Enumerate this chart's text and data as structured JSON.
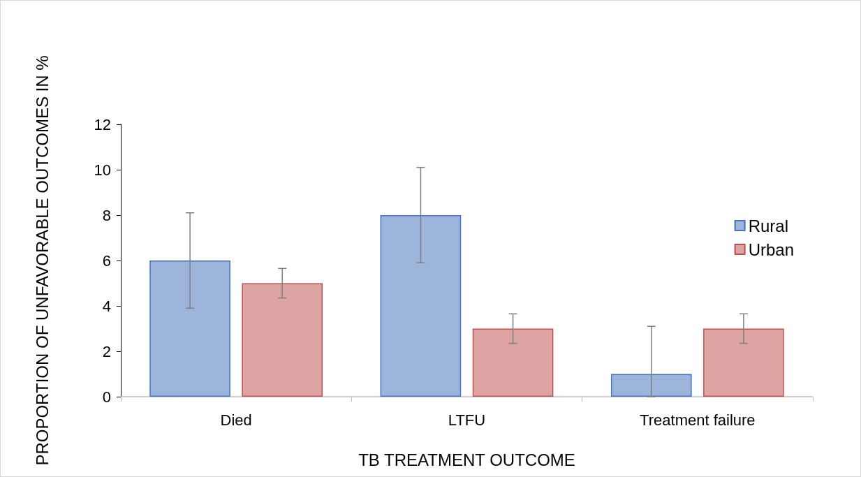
{
  "chart_data": {
    "type": "bar",
    "xlabel": "TB TREATMENT OUTCOME",
    "ylabel": "PROPORTION OF UNFAVORABLE OUTCOMES IN %",
    "categories": [
      "Died",
      "LTFU",
      "Treatment failure"
    ],
    "series": [
      {
        "name": "Rural",
        "color": "#9db4db",
        "values": [
          6,
          8,
          1
        ],
        "errors": [
          [
            3.9,
            8.1
          ],
          [
            5.9,
            10.1
          ],
          [
            0,
            3.1
          ]
        ]
      },
      {
        "name": "Urban",
        "color": "#dea3a3",
        "values": [
          5,
          3,
          3
        ],
        "errors": [
          [
            4.35,
            5.65
          ],
          [
            2.35,
            3.65
          ],
          [
            2.35,
            3.65
          ]
        ]
      }
    ],
    "ylim": [
      0,
      12
    ],
    "yticks": [
      0,
      2,
      4,
      6,
      8,
      10,
      12
    ],
    "grid": false,
    "legend": "right"
  }
}
